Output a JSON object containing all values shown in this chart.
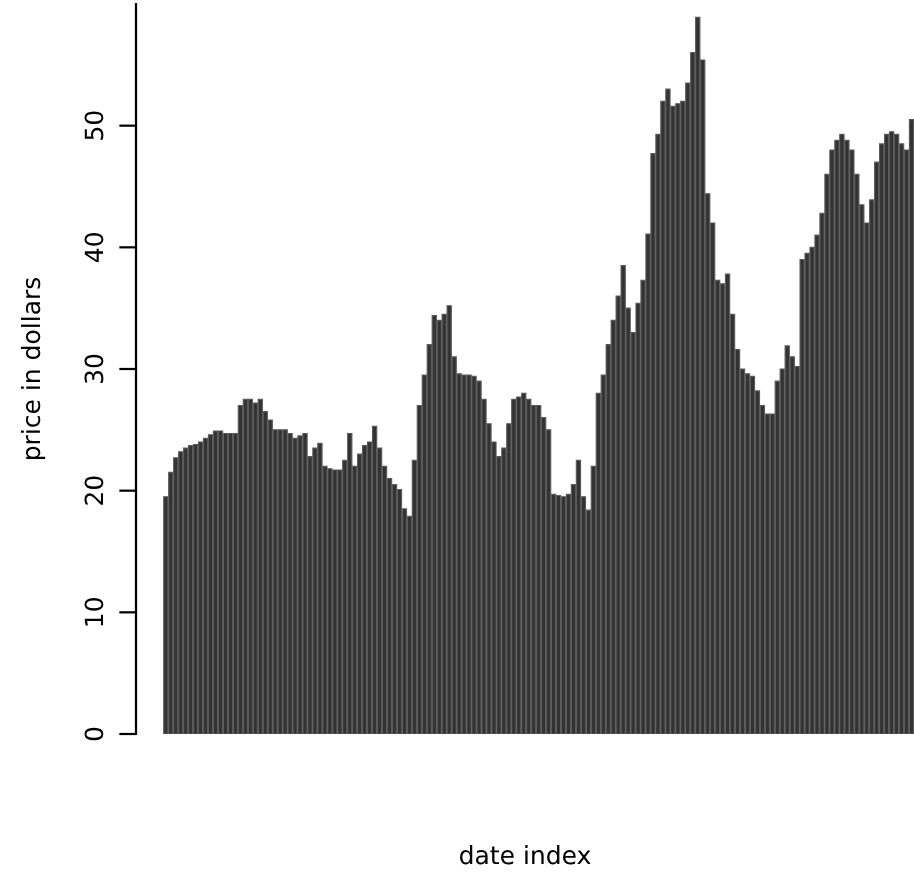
{
  "chart_data": {
    "type": "bar",
    "xlabel": "date index",
    "ylabel": "price in dollars",
    "categories": [
      null,
      null,
      null,
      null,
      null,
      null,
      null,
      null,
      null,
      null,
      null,
      null,
      null,
      null,
      null,
      null,
      null,
      null,
      null,
      null,
      null,
      null,
      null,
      null,
      null,
      null,
      null,
      null,
      null,
      null,
      null,
      null,
      null,
      null,
      null,
      null,
      null,
      null,
      null,
      null,
      null,
      null,
      null,
      null,
      null,
      null,
      null,
      null,
      null,
      null,
      null,
      null,
      null,
      null,
      null,
      null,
      null,
      null,
      null,
      null,
      null,
      null,
      null,
      null,
      null,
      null,
      null,
      null,
      null,
      null,
      null,
      null,
      null,
      null,
      null,
      null,
      null,
      null,
      null,
      null,
      null,
      null,
      null,
      null,
      null,
      null,
      null,
      null,
      null,
      null,
      null,
      null,
      null,
      null,
      null,
      null,
      null,
      null,
      null,
      null,
      null,
      null,
      null,
      null,
      null,
      null,
      null,
      null,
      null,
      null,
      null,
      null,
      null,
      null,
      null,
      null,
      null,
      null,
      null,
      null,
      null,
      null,
      null,
      null,
      null,
      null,
      null,
      null,
      null,
      null,
      null,
      null,
      null,
      null,
      null,
      null,
      null,
      null,
      null,
      null,
      null,
      null,
      null,
      null,
      null,
      null,
      null,
      null,
      null,
      null,
      null
    ],
    "values": [
      19.5,
      21.5,
      22.7,
      23.2,
      23.5,
      23.7,
      23.8,
      24,
      24.3,
      24.6,
      24.9,
      24.9,
      24.7,
      24.7,
      24.7,
      27,
      27.5,
      27.5,
      27.2,
      27.5,
      26.5,
      25.8,
      25,
      25,
      25,
      24.7,
      24.3,
      24.5,
      24.7,
      22.8,
      23.5,
      23.9,
      22,
      21.8,
      21.7,
      21.7,
      22.5,
      24.7,
      22,
      23,
      23.7,
      24,
      25.3,
      23.5,
      22,
      21,
      20.5,
      20.1,
      18.5,
      17.9,
      22.5,
      27,
      29.5,
      32,
      34.4,
      34,
      34.5,
      35.2,
      31,
      29.6,
      29.5,
      29.5,
      29.4,
      29,
      27.5,
      25.5,
      24,
      22.8,
      23.5,
      25.5,
      27.5,
      27.7,
      28,
      27.5,
      27,
      27,
      26,
      25,
      19.7,
      19.6,
      19.5,
      19.7,
      20.5,
      22.5,
      19.5,
      18.4,
      22,
      28,
      29.5,
      32,
      34,
      36,
      38.5,
      35,
      33,
      35.4,
      37.3,
      41.1,
      47.7,
      49.3,
      52,
      53,
      51.6,
      51.8,
      52,
      53.5,
      56,
      58.9,
      55.4,
      44.4,
      42,
      37.3,
      37,
      37.8,
      34.5,
      31.6,
      30,
      29.6,
      29.4,
      28.2,
      27,
      26.3,
      26.3,
      29,
      30,
      31.9,
      31,
      30.2,
      39,
      39.5,
      40,
      41,
      42.8,
      46,
      48,
      48.8,
      49.3,
      48.8,
      48,
      46,
      43.5,
      42,
      43.9,
      47,
      48.5,
      49.3,
      49.5,
      49.3,
      48.5,
      48,
      50.5
    ],
    "color": "#333333",
    "ylim": [
      0,
      60
    ],
    "yticks": [
      0,
      10,
      20,
      30,
      40,
      50
    ],
    "grid": false,
    "tick_labels": "y"
  }
}
